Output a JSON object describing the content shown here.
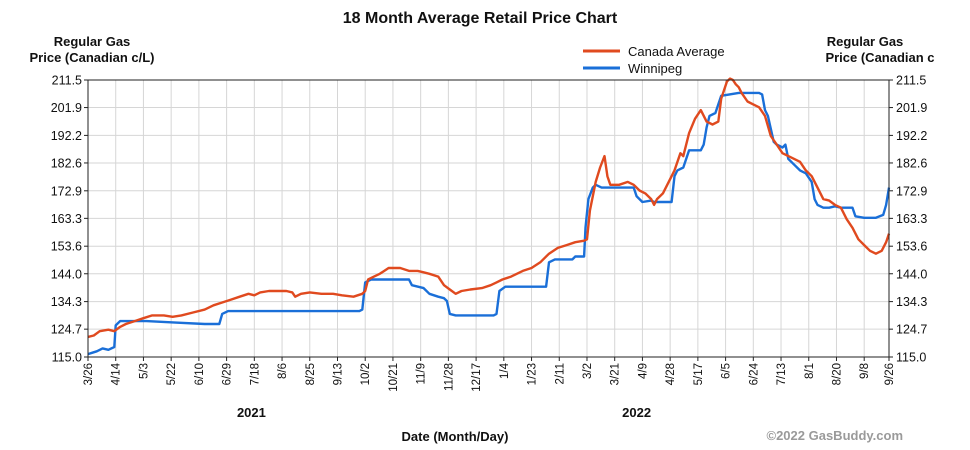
{
  "chart_data": {
    "type": "line",
    "title": "18 Month Average Retail Price Chart",
    "ylabel_left": [
      "Regular Gas",
      "Price (Canadian c/L)"
    ],
    "ylabel_right": [
      "Regular Gas",
      "Price (Canadian c"
    ],
    "xlabel": "Date (Month/Day)",
    "copyright": "©2022 GasBuddy.com",
    "ylim": [
      115.0,
      211.5
    ],
    "yticks": [
      "211.5",
      "201.9",
      "192.2",
      "182.6",
      "172.9",
      "163.3",
      "153.6",
      "144.0",
      "134.3",
      "124.7",
      "115.0"
    ],
    "xlim": [
      0,
      549
    ],
    "x_unit": "days from 3/26 (2021)",
    "xticks": [
      {
        "d": 0,
        "label": "3/26"
      },
      {
        "d": 19,
        "label": "4/14"
      },
      {
        "d": 38,
        "label": "5/3"
      },
      {
        "d": 57,
        "label": "5/22"
      },
      {
        "d": 76,
        "label": "6/10"
      },
      {
        "d": 95,
        "label": "6/29"
      },
      {
        "d": 114,
        "label": "7/18"
      },
      {
        "d": 133,
        "label": "8/6"
      },
      {
        "d": 152,
        "label": "8/25"
      },
      {
        "d": 171,
        "label": "9/13"
      },
      {
        "d": 190,
        "label": "10/2"
      },
      {
        "d": 209,
        "label": "10/21"
      },
      {
        "d": 228,
        "label": "11/9"
      },
      {
        "d": 247,
        "label": "11/28"
      },
      {
        "d": 266,
        "label": "12/17"
      },
      {
        "d": 285,
        "label": "1/4"
      },
      {
        "d": 304,
        "label": "1/23"
      },
      {
        "d": 323,
        "label": "2/11"
      },
      {
        "d": 342,
        "label": "3/2"
      },
      {
        "d": 361,
        "label": "3/21"
      },
      {
        "d": 380,
        "label": "4/9"
      },
      {
        "d": 399,
        "label": "4/28"
      },
      {
        "d": 418,
        "label": "5/17"
      },
      {
        "d": 437,
        "label": "6/5"
      },
      {
        "d": 456,
        "label": "6/24"
      },
      {
        "d": 475,
        "label": "7/13"
      },
      {
        "d": 494,
        "label": "8/1"
      },
      {
        "d": 513,
        "label": "8/20"
      },
      {
        "d": 532,
        "label": "9/8"
      },
      {
        "d": 549,
        "label": "9/26"
      }
    ],
    "years": [
      {
        "d": 112,
        "label": "2021"
      },
      {
        "d": 376,
        "label": "2022"
      }
    ],
    "grid": true,
    "legend_position": "top-right",
    "series": [
      {
        "name": "Canada Average",
        "color": "#e04a1f",
        "points": [
          [
            0,
            122
          ],
          [
            4,
            122.5
          ],
          [
            8,
            124
          ],
          [
            14,
            124.5
          ],
          [
            18,
            124
          ],
          [
            22,
            125.5
          ],
          [
            26,
            126.5
          ],
          [
            32,
            127.5
          ],
          [
            38,
            128.5
          ],
          [
            44,
            129.5
          ],
          [
            52,
            129.5
          ],
          [
            58,
            129
          ],
          [
            64,
            129.5
          ],
          [
            72,
            130.5
          ],
          [
            80,
            131.5
          ],
          [
            86,
            133
          ],
          [
            92,
            134
          ],
          [
            98,
            135
          ],
          [
            104,
            136
          ],
          [
            110,
            137
          ],
          [
            114,
            136.5
          ],
          [
            118,
            137.5
          ],
          [
            124,
            138
          ],
          [
            130,
            138
          ],
          [
            136,
            138
          ],
          [
            140,
            137.5
          ],
          [
            142,
            136
          ],
          [
            146,
            137
          ],
          [
            152,
            137.5
          ],
          [
            160,
            137
          ],
          [
            168,
            137
          ],
          [
            174,
            136.5
          ],
          [
            182,
            136
          ],
          [
            188,
            137
          ],
          [
            190,
            138
          ],
          [
            192,
            142
          ],
          [
            196,
            143
          ],
          [
            200,
            144
          ],
          [
            206,
            146
          ],
          [
            214,
            146
          ],
          [
            220,
            145
          ],
          [
            226,
            145
          ],
          [
            230,
            144.5
          ],
          [
            234,
            144
          ],
          [
            240,
            143
          ],
          [
            244,
            140
          ],
          [
            248,
            138.5
          ],
          [
            252,
            137
          ],
          [
            256,
            138
          ],
          [
            262,
            138.5
          ],
          [
            270,
            139
          ],
          [
            276,
            140
          ],
          [
            280,
            141
          ],
          [
            284,
            142
          ],
          [
            290,
            143
          ],
          [
            298,
            145
          ],
          [
            304,
            146
          ],
          [
            310,
            148
          ],
          [
            316,
            151
          ],
          [
            322,
            153
          ],
          [
            328,
            154
          ],
          [
            334,
            155
          ],
          [
            340,
            155.5
          ],
          [
            342,
            156
          ],
          [
            344,
            166
          ],
          [
            348,
            176
          ],
          [
            351,
            181
          ],
          [
            354,
            185
          ],
          [
            356,
            178
          ],
          [
            358,
            175
          ],
          [
            364,
            175
          ],
          [
            370,
            176
          ],
          [
            374,
            175
          ],
          [
            378,
            173
          ],
          [
            382,
            172
          ],
          [
            386,
            170
          ],
          [
            388,
            168
          ],
          [
            390,
            170
          ],
          [
            394,
            172
          ],
          [
            398,
            176
          ],
          [
            402,
            180
          ],
          [
            406,
            186
          ],
          [
            408,
            185
          ],
          [
            412,
            193
          ],
          [
            416,
            198
          ],
          [
            420,
            201
          ],
          [
            424,
            197
          ],
          [
            428,
            196
          ],
          [
            432,
            197
          ],
          [
            434,
            205
          ],
          [
            436,
            208
          ],
          [
            438,
            211
          ],
          [
            440,
            212
          ],
          [
            442,
            211.5
          ],
          [
            444,
            210
          ],
          [
            446,
            209
          ],
          [
            448,
            207
          ],
          [
            452,
            204
          ],
          [
            456,
            203
          ],
          [
            460,
            202
          ],
          [
            464,
            199
          ],
          [
            468,
            192
          ],
          [
            472,
            189
          ],
          [
            476,
            186
          ],
          [
            480,
            185
          ],
          [
            484,
            184
          ],
          [
            488,
            183
          ],
          [
            492,
            180
          ],
          [
            496,
            178
          ],
          [
            500,
            174
          ],
          [
            504,
            170
          ],
          [
            508,
            169.5
          ],
          [
            512,
            168
          ],
          [
            516,
            167
          ],
          [
            520,
            163
          ],
          [
            524,
            160
          ],
          [
            528,
            156
          ],
          [
            532,
            154
          ],
          [
            536,
            152
          ],
          [
            540,
            151
          ],
          [
            544,
            152
          ],
          [
            547,
            155
          ],
          [
            549,
            158
          ]
        ]
      },
      {
        "name": "Winnipeg",
        "color": "#1a6fd8",
        "points": [
          [
            0,
            116
          ],
          [
            3,
            116.5
          ],
          [
            6,
            117
          ],
          [
            10,
            118
          ],
          [
            14,
            117.5
          ],
          [
            18,
            118.5
          ],
          [
            19,
            126
          ],
          [
            22,
            127.5
          ],
          [
            40,
            127.5
          ],
          [
            60,
            127
          ],
          [
            80,
            126.5
          ],
          [
            90,
            126.5
          ],
          [
            92,
            130
          ],
          [
            96,
            131
          ],
          [
            140,
            131
          ],
          [
            170,
            131
          ],
          [
            186,
            131
          ],
          [
            188,
            131.5
          ],
          [
            190,
            141
          ],
          [
            194,
            142
          ],
          [
            214,
            142
          ],
          [
            220,
            142
          ],
          [
            222,
            140
          ],
          [
            230,
            139
          ],
          [
            234,
            137
          ],
          [
            240,
            136
          ],
          [
            244,
            135.5
          ],
          [
            246,
            134.5
          ],
          [
            248,
            130
          ],
          [
            252,
            129.5
          ],
          [
            270,
            129.5
          ],
          [
            278,
            129.5
          ],
          [
            280,
            130
          ],
          [
            282,
            138
          ],
          [
            286,
            139.5
          ],
          [
            304,
            139.5
          ],
          [
            314,
            139.5
          ],
          [
            316,
            148
          ],
          [
            320,
            149
          ],
          [
            332,
            149
          ],
          [
            334,
            150
          ],
          [
            340,
            150
          ],
          [
            341,
            160
          ],
          [
            343,
            170
          ],
          [
            346,
            174
          ],
          [
            348,
            175
          ],
          [
            352,
            174
          ],
          [
            360,
            174
          ],
          [
            374,
            174
          ],
          [
            376,
            171
          ],
          [
            378,
            170
          ],
          [
            380,
            169
          ],
          [
            386,
            169.5
          ],
          [
            388,
            169
          ],
          [
            400,
            169
          ],
          [
            402,
            178
          ],
          [
            404,
            180
          ],
          [
            408,
            181
          ],
          [
            412,
            187
          ],
          [
            416,
            187
          ],
          [
            420,
            187
          ],
          [
            422,
            189
          ],
          [
            424,
            195
          ],
          [
            426,
            199
          ],
          [
            430,
            200
          ],
          [
            432,
            203
          ],
          [
            434,
            206
          ],
          [
            446,
            207
          ],
          [
            450,
            207
          ],
          [
            452,
            207
          ],
          [
            454,
            207
          ],
          [
            456,
            207
          ],
          [
            460,
            207
          ],
          [
            462,
            206.5
          ],
          [
            464,
            201
          ],
          [
            466,
            199
          ],
          [
            470,
            190
          ],
          [
            472,
            189
          ],
          [
            476,
            188
          ],
          [
            478,
            189
          ],
          [
            480,
            184
          ],
          [
            484,
            182
          ],
          [
            488,
            180
          ],
          [
            492,
            179
          ],
          [
            496,
            176
          ],
          [
            498,
            170
          ],
          [
            500,
            168
          ],
          [
            504,
            167
          ],
          [
            508,
            167
          ],
          [
            512,
            167.5
          ],
          [
            516,
            167
          ],
          [
            520,
            167
          ],
          [
            524,
            167
          ],
          [
            526,
            164
          ],
          [
            532,
            163.5
          ],
          [
            540,
            163.5
          ],
          [
            545,
            164.5
          ],
          [
            547,
            168
          ],
          [
            549,
            174
          ]
        ]
      }
    ]
  }
}
